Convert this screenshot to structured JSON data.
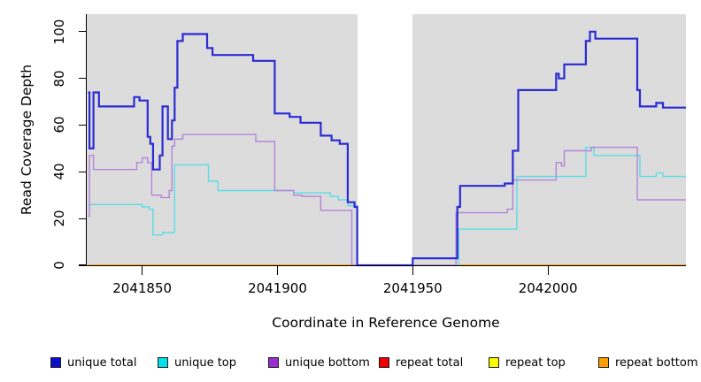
{
  "figure": {
    "y_axis_title": "Read Coverage Depth",
    "x_axis_title": "Coordinate in Reference Genome"
  },
  "legend": {
    "items": [
      {
        "label": "unique total",
        "color": "#0D0DCC"
      },
      {
        "label": "unique top",
        "color": "#00E0E8"
      },
      {
        "label": "unique bottom",
        "color": "#992FD1"
      },
      {
        "label": "repeat total",
        "color": "#EE0000"
      },
      {
        "label": "repeat top",
        "color": "#FBFB00"
      },
      {
        "label": "repeat bottom",
        "color": "#FFA000"
      }
    ]
  },
  "chart_data": {
    "type": "line",
    "subtype": "step-after",
    "title": "",
    "xlabel": "Coordinate in Reference Genome",
    "ylabel": "Read Coverage Depth",
    "x_range": [
      2041829.5,
      2042051
    ],
    "y_range": [
      0,
      107.5
    ],
    "x_ticks": [
      2041850,
      2041900,
      2041950,
      2042000
    ],
    "y_ticks": [
      0,
      20,
      40,
      60,
      80,
      100
    ],
    "grid": false,
    "plot_bg": "#DCDCDC",
    "gap_region": {
      "from": 2041929.5,
      "to": 2041950
    },
    "legend_position": "bottom",
    "series": [
      {
        "name": "repeat total",
        "color": "#E02020",
        "lwd": 1.4,
        "points": [
          [
            2041830,
            0
          ]
        ]
      },
      {
        "name": "repeat top",
        "color": "#EDED1A",
        "lwd": 1.4,
        "points": [
          [
            2041830,
            0
          ]
        ]
      },
      {
        "name": "repeat bottom",
        "color": "#FF9E1A",
        "lwd": 1.6,
        "points": [
          [
            2041830,
            0
          ]
        ]
      },
      {
        "name": "unique top",
        "color": "#5ADDE7",
        "lwd": 1.4,
        "points": [
          [
            2041830,
            26
          ],
          [
            2041850,
            25
          ],
          [
            2041852.5,
            24
          ],
          [
            2041854,
            13
          ],
          [
            2041857.5,
            14
          ],
          [
            2041862,
            43
          ],
          [
            2041874.5,
            36
          ],
          [
            2041878,
            32
          ],
          [
            2041906,
            31
          ],
          [
            2041919.5,
            29.5
          ],
          [
            2041922.5,
            28
          ],
          [
            2041926,
            25.5
          ],
          [
            2041929.5,
            0
          ],
          [
            2041967,
            15.5
          ],
          [
            2041988.5,
            38
          ],
          [
            2042014,
            50.5
          ],
          [
            2042017,
            47
          ],
          [
            2042034,
            38
          ],
          [
            2042040,
            39.5
          ],
          [
            2042042.5,
            38
          ]
        ]
      },
      {
        "name": "unique bottom",
        "color": "#B583DA",
        "lwd": 1.4,
        "points": [
          [
            2041830,
            21
          ],
          [
            2041830.5,
            47
          ],
          [
            2041832,
            41
          ],
          [
            2041848,
            44
          ],
          [
            2041850,
            46
          ],
          [
            2041852,
            44
          ],
          [
            2041853.5,
            30
          ],
          [
            2041857,
            29
          ],
          [
            2041860,
            32
          ],
          [
            2041861,
            51
          ],
          [
            2041862,
            54
          ],
          [
            2041865,
            56
          ],
          [
            2041892,
            53
          ],
          [
            2041899,
            32
          ],
          [
            2041906,
            30
          ],
          [
            2041909,
            29.5
          ],
          [
            2041916,
            23.5
          ],
          [
            2041927.5,
            0
          ],
          [
            2041966,
            22.5
          ],
          [
            2041985,
            24
          ],
          [
            2041987,
            36.5
          ],
          [
            2042003,
            44
          ],
          [
            2042005,
            42.5
          ],
          [
            2042006,
            49
          ],
          [
            2042016,
            50.5
          ],
          [
            2042033,
            28
          ]
        ]
      },
      {
        "name": "unique total",
        "color": "#2B2BD5",
        "lwd": 2.2,
        "points": [
          [
            2041830,
            74
          ],
          [
            2041830.5,
            50
          ],
          [
            2041832,
            74
          ],
          [
            2041834,
            68
          ],
          [
            2041847,
            72
          ],
          [
            2041849,
            70.5
          ],
          [
            2041852,
            55
          ],
          [
            2041853,
            52
          ],
          [
            2041854,
            41
          ],
          [
            2041856.5,
            47
          ],
          [
            2041857.5,
            68
          ],
          [
            2041859.5,
            54
          ],
          [
            2041861,
            62
          ],
          [
            2041862,
            76
          ],
          [
            2041863,
            96
          ],
          [
            2041865,
            99
          ],
          [
            2041874,
            93
          ],
          [
            2041876,
            90
          ],
          [
            2041891,
            87.5
          ],
          [
            2041899,
            65
          ],
          [
            2041904.5,
            63.5
          ],
          [
            2041908.5,
            61
          ],
          [
            2041916,
            55.5
          ],
          [
            2041920,
            53.5
          ],
          [
            2041923,
            52
          ],
          [
            2041926,
            27
          ],
          [
            2041928.5,
            25
          ],
          [
            2041929.5,
            0
          ],
          [
            2041950,
            3
          ],
          [
            2041966.5,
            25
          ],
          [
            2041967.5,
            34
          ],
          [
            2041984,
            35
          ],
          [
            2041987,
            49
          ],
          [
            2041989,
            75
          ],
          [
            2042003,
            82
          ],
          [
            2042004,
            80
          ],
          [
            2042006,
            86
          ],
          [
            2042014,
            96
          ],
          [
            2042015.5,
            100
          ],
          [
            2042017.5,
            97
          ],
          [
            2042033,
            75
          ],
          [
            2042034,
            68
          ],
          [
            2042040,
            69.5
          ],
          [
            2042042.5,
            67.5
          ]
        ]
      }
    ]
  }
}
